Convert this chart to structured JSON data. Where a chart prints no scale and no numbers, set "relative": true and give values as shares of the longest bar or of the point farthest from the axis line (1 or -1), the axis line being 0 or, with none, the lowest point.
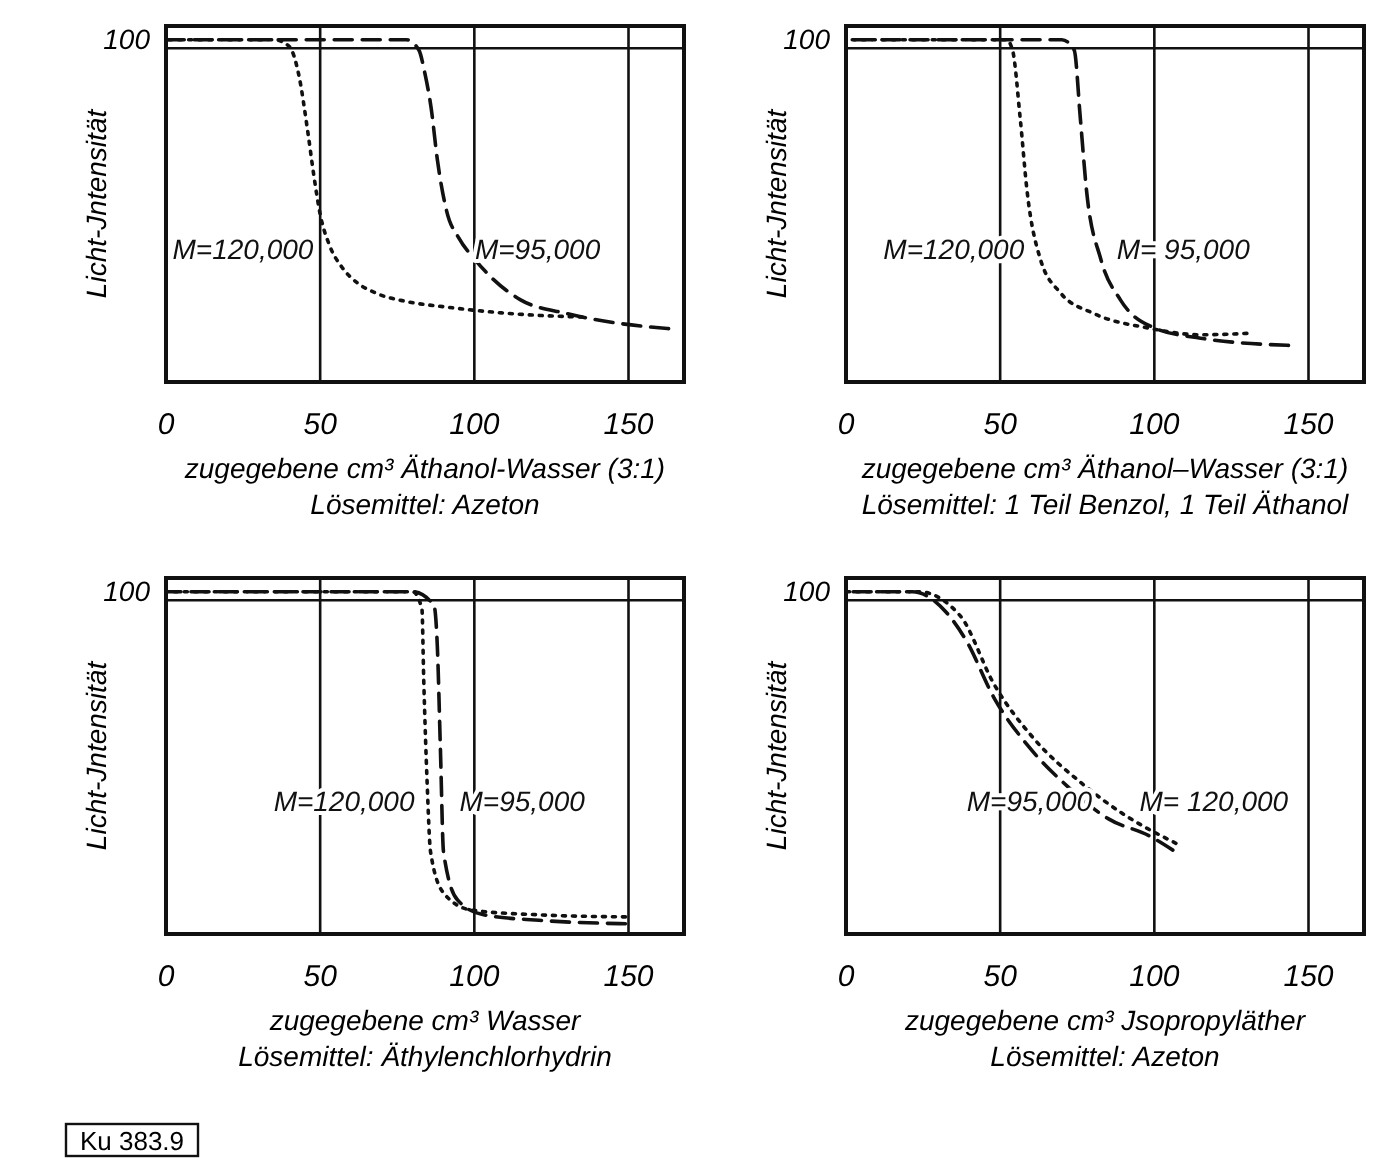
{
  "chart_data": [
    {
      "type": "line",
      "relative": true,
      "xlabel": "zugegebene cm³ Äthanol-Wasser (3:1)",
      "ylabel": "Licht-Jntensität",
      "annotations": [
        "100",
        "Lösemittel: Azeton"
      ],
      "xlim": [
        0,
        168
      ],
      "xticks": [
        0,
        50,
        100,
        150
      ],
      "grid": "x",
      "legend": false,
      "marker": "none",
      "ref_lines": [
        {
          "axis": "y",
          "value": 0.975
        }
      ],
      "series": [
        {
          "name": "M=95,000",
          "color": "#111111",
          "line_style": "dashed",
          "x": [
            0,
            40,
            78,
            82,
            84,
            86,
            88,
            91,
            95,
            100,
            105,
            115,
            130,
            148,
            163
          ],
          "values": [
            1,
            1,
            1,
            0.97,
            0.9,
            0.8,
            0.65,
            0.5,
            0.42,
            0.36,
            0.31,
            0.24,
            0.2,
            0.17,
            0.156
          ]
        },
        {
          "name": "M=120,000",
          "color": "#111111",
          "line_style": "dotted",
          "x": [
            0,
            20,
            35,
            40,
            43,
            46,
            48,
            50,
            53,
            57,
            62,
            68,
            78,
            90,
            105,
            120,
            135
          ],
          "values": [
            1,
            1,
            1,
            0.98,
            0.9,
            0.73,
            0.6,
            0.49,
            0.4,
            0.336,
            0.29,
            0.26,
            0.235,
            0.22,
            0.205,
            0.195,
            0.19
          ]
        }
      ]
    },
    {
      "type": "line",
      "relative": true,
      "xlabel": "zugegebene cm³ Äthanol–Wasser (3:1)",
      "ylabel": "Licht-Jntensität",
      "annotations": [
        "100",
        "Lösemittel: 1 Teil Benzol, 1 Teil Äthanol"
      ],
      "xlim": [
        0,
        168
      ],
      "xticks": [
        0,
        50,
        100,
        150
      ],
      "grid": "x",
      "legend": false,
      "marker": "none",
      "ref_lines": [
        {
          "axis": "y",
          "value": 0.975
        }
      ],
      "series": [
        {
          "name": "M= 95,000",
          "color": "#111111",
          "line_style": "dashed",
          "x": [
            0,
            50,
            70,
            74,
            76,
            78,
            82.6,
            89,
            100,
            115,
            143.5
          ],
          "values": [
            1,
            1,
            1,
            0.97,
            0.77,
            0.56,
            0.36,
            0.24,
            0.158,
            0.128,
            0.107
          ]
        },
        {
          "name": "M=120,000",
          "color": "#111111",
          "line_style": "dotted",
          "x": [
            0,
            30,
            52,
            54,
            56.5,
            58.7,
            63,
            69.6,
            80.4,
            97.8,
            115,
            130
          ],
          "values": [
            1,
            1,
            1,
            0.97,
            0.77,
            0.56,
            0.36,
            0.26,
            0.2,
            0.158,
            0.138,
            0.142
          ]
        }
      ]
    },
    {
      "type": "line",
      "relative": true,
      "xlabel": "zugegebene cm³ Wasser",
      "ylabel": "Licht-Jntensität",
      "annotations": [
        "100",
        "Lösemittel: Äthylenchlorhydrin",
        "Ku 383.9"
      ],
      "xlim": [
        0,
        168
      ],
      "xticks": [
        0,
        50,
        100,
        150
      ],
      "grid": "x",
      "legend": false,
      "marker": "none",
      "ref_lines": [
        {
          "axis": "y",
          "value": 0.975
        }
      ],
      "series": [
        {
          "name": "M=95,000",
          "color": "#111111",
          "line_style": "dashed",
          "x": [
            0,
            40,
            80,
            86.9,
            88,
            89,
            90,
            94.5,
            103,
            121,
            149
          ],
          "values": [
            1,
            1,
            1,
            0.96,
            0.84,
            0.54,
            0.24,
            0.1,
            0.056,
            0.04,
            0.03
          ]
        },
        {
          "name": "M=120,000",
          "color": "#111111",
          "line_style": "dotted",
          "x": [
            0,
            40,
            80,
            83,
            83.6,
            84.7,
            85.8,
            90,
            99,
            121,
            149
          ],
          "values": [
            1,
            1,
            1,
            0.95,
            0.74,
            0.44,
            0.24,
            0.12,
            0.07,
            0.056,
            0.05
          ]
        }
      ]
    },
    {
      "type": "line",
      "relative": true,
      "xlabel": "zugegebene cm³ Jsopropyläther",
      "ylabel": "Licht-Jntensität",
      "annotations": [
        "100",
        "Lösemittel: Azeton"
      ],
      "xlim": [
        0,
        168
      ],
      "xticks": [
        0,
        50,
        100,
        150
      ],
      "grid": "x",
      "legend": false,
      "marker": "none",
      "ref_lines": [
        {
          "axis": "y",
          "value": 0.975
        }
      ],
      "series": [
        {
          "name": "M=95,000",
          "color": "#111111",
          "line_style": "dashed",
          "x": [
            0,
            10,
            21.5,
            32.5,
            39,
            48,
            59,
            72,
            85,
            98.5,
            106
          ],
          "values": [
            1,
            1,
            1,
            0.94,
            0.857,
            0.69,
            0.55,
            0.43,
            0.337,
            0.286,
            0.245
          ]
        },
        {
          "name": "M= 120,000",
          "color": "#111111",
          "line_style": "dotted",
          "x": [
            0,
            10,
            23.5,
            37,
            48,
            61,
            76.5,
            90,
            107
          ],
          "values": [
            1,
            1,
            1,
            0.93,
            0.73,
            0.57,
            0.44,
            0.35,
            0.265
          ]
        }
      ]
    }
  ]
}
